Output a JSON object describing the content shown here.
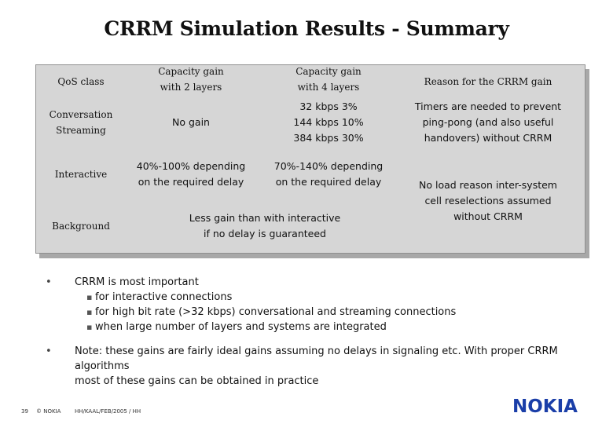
{
  "title": "CRRM Simulation Results - Summary",
  "table": {
    "headers": {
      "qos_class": "QoS class",
      "gain_2_layers": [
        "Capacity gain",
        "with 2 layers"
      ],
      "gain_4_layers": [
        "Capacity gain",
        "with 4 layers"
      ],
      "reason": "Reason for the CRRM gain"
    },
    "rows": {
      "conversational": {
        "class": [
          "Conversation",
          "Streaming"
        ],
        "gain_2": "No gain",
        "gain_4": [
          "32 kbps 3%",
          "144 kbps 10%",
          "384 kbps 30%"
        ],
        "reason": [
          "Timers are needed to prevent",
          "ping-pong (and also useful",
          "handovers) without CRRM"
        ]
      },
      "interactive": {
        "class": "Interactive",
        "gain_2": [
          "40%-100% depending",
          "on the required delay"
        ],
        "gain_4": [
          "70%-140% depending",
          "on the required delay"
        ]
      },
      "background": {
        "class": "Background",
        "gain_merged": [
          "Less gain than with interactive",
          "if no delay is guaranteed"
        ]
      },
      "shared_reason": [
        "No load reason inter-system",
        "cell reselections assumed",
        "without CRRM"
      ]
    }
  },
  "bullets": [
    {
      "text": "CRRM is most important",
      "sub": [
        "for interactive connections",
        "for high bit rate (>32 kbps) conversational and streaming connections",
        "when large number of layers and systems are integrated"
      ]
    },
    {
      "text": "Note: these gains are fairly ideal gains assuming no delays in signaling etc. With proper CRRM algorithms",
      "text2": "most of these gains can be obtained in practice"
    }
  ],
  "footer": {
    "page_number": "39",
    "copyright": "© NOKIA",
    "reference": "HH/KAAL/FEB/2005 / HH"
  },
  "logo": "NOKIA",
  "colors": {
    "table_bg": "#d6d6d6",
    "shadow": "#a8a8a8",
    "logo": "#1a3ea8"
  }
}
